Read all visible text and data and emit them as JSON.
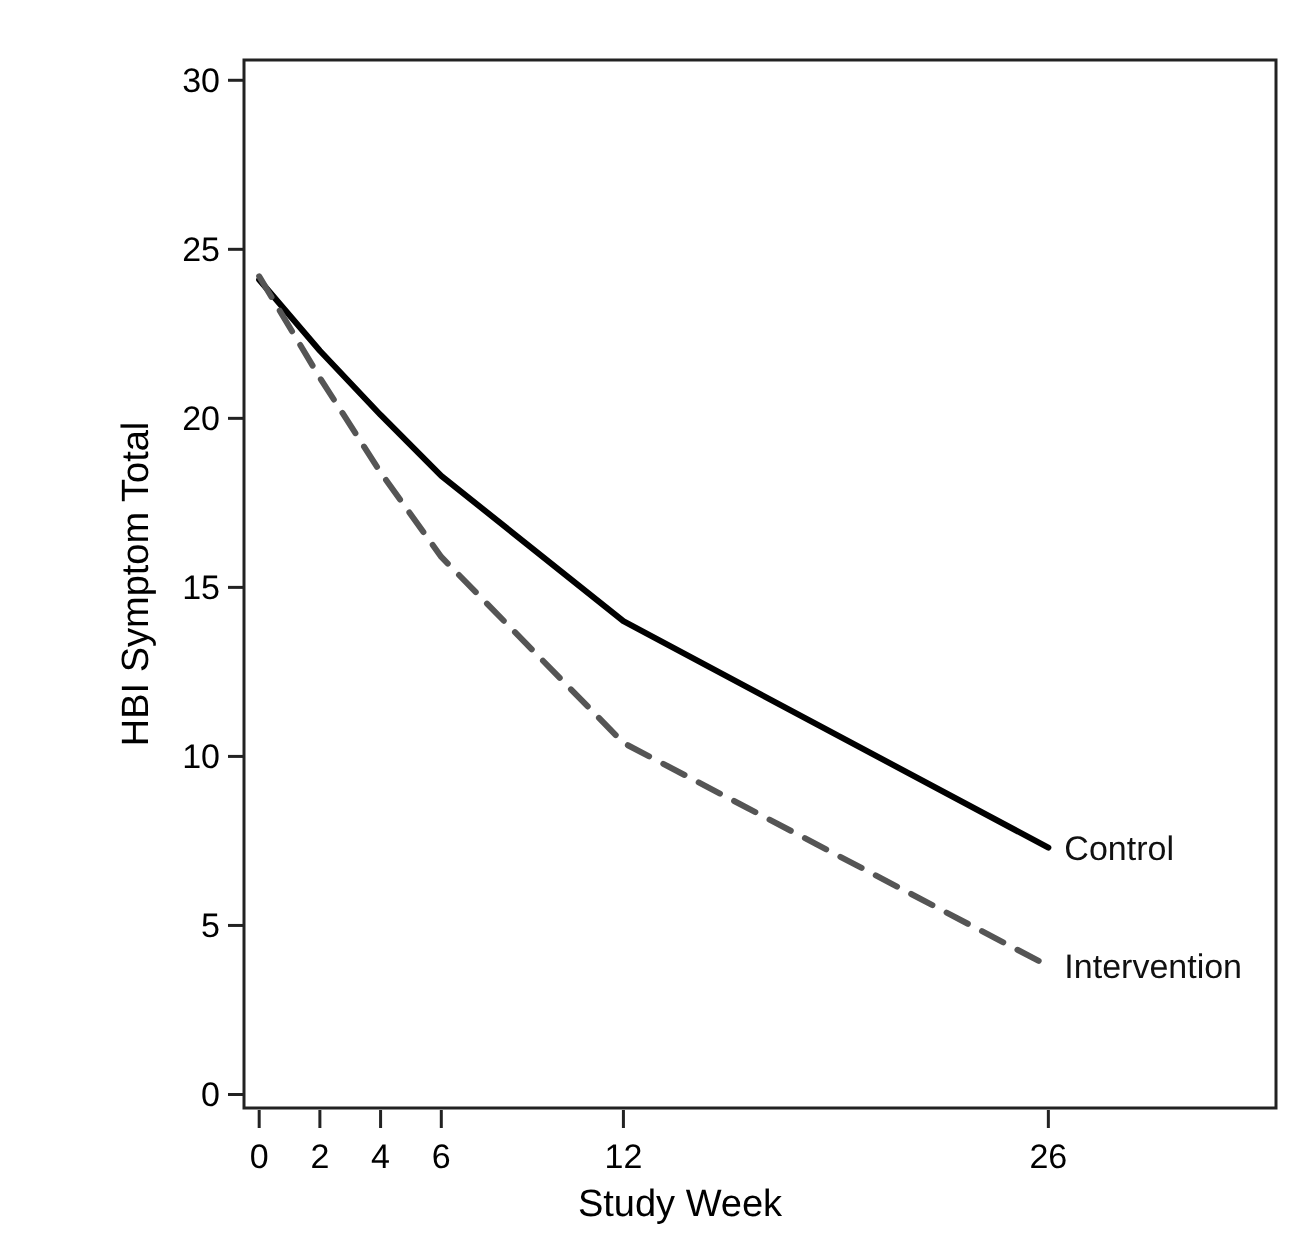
{
  "chart_data": {
    "type": "line",
    "xlabel": "Study Week",
    "ylabel": "HBI Symptom Total",
    "x": [
      0,
      2,
      4,
      6,
      12,
      26
    ],
    "series": [
      {
        "name": "Control",
        "color": "#000000",
        "line_style": "solid",
        "values": [
          24.1,
          22.0,
          20.1,
          18.3,
          14.0,
          7.3
        ]
      },
      {
        "name": "Intervention",
        "color": "#555555",
        "line_style": "dashed",
        "values": [
          24.2,
          21.2,
          18.4,
          15.9,
          10.4,
          3.8
        ]
      }
    ],
    "xlim": [
      -0.5,
      33.5
    ],
    "xticks": [
      0,
      2,
      4,
      6,
      12,
      26
    ],
    "ylim": [
      -0.4,
      30.6
    ],
    "yticks": [
      0,
      5,
      10,
      15,
      20,
      25,
      30
    ]
  }
}
